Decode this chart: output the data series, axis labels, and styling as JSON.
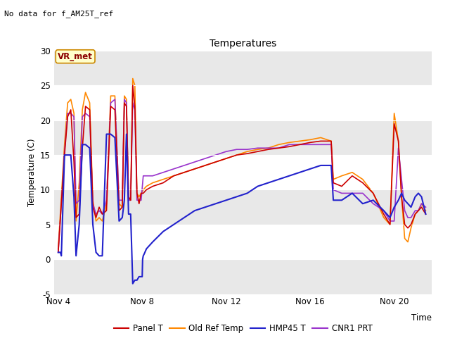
{
  "title": "Temperatures",
  "ylabel": "Temperature (C)",
  "xlabel": "Time",
  "top_left_text": "No data for f_AM25T_ref",
  "vr_met_label": "VR_met",
  "ylim": [
    -5,
    30
  ],
  "yticks": [
    -5,
    0,
    5,
    10,
    15,
    20,
    25,
    30
  ],
  "fig_bg_color": "#ffffff",
  "plot_bg_color": "#e8e8e8",
  "legend_entries": [
    "Panel T",
    "Old Ref Temp",
    "HMP45 T",
    "CNR1 PRT"
  ],
  "legend_colors": [
    "#cc0000",
    "#ff8800",
    "#2222cc",
    "#9933cc"
  ],
  "legend_linestyles": [
    "-",
    "-",
    "-",
    "-"
  ],
  "x_tick_labels": [
    "Nov 4",
    "Nov 8",
    "Nov 12",
    "Nov 16",
    "Nov 20"
  ],
  "x_tick_positions": [
    4,
    8,
    12,
    16,
    20
  ],
  "series": {
    "panel_t": {
      "x": [
        4.0,
        4.15,
        4.3,
        4.45,
        4.6,
        4.75,
        4.85,
        5.0,
        5.15,
        5.3,
        5.5,
        5.65,
        5.8,
        5.95,
        6.1,
        6.3,
        6.5,
        6.7,
        6.9,
        7.05,
        7.15,
        7.25,
        7.35,
        7.45,
        7.55,
        7.65,
        7.75,
        7.85,
        7.95,
        8.05,
        8.2,
        8.5,
        9.0,
        9.5,
        10.0,
        10.5,
        11.0,
        11.5,
        12.0,
        12.5,
        13.0,
        13.5,
        14.0,
        14.5,
        15.0,
        15.5,
        16.0,
        16.5,
        17.0,
        17.1,
        17.5,
        18.0,
        18.5,
        19.0,
        19.5,
        19.8,
        20.0,
        20.2,
        20.35,
        20.5,
        20.65,
        20.8,
        21.0,
        21.15,
        21.3,
        21.5
      ],
      "y": [
        1.0,
        8.0,
        15.0,
        20.5,
        21.5,
        14.0,
        6.0,
        6.5,
        16.0,
        22.0,
        21.5,
        7.5,
        6.0,
        7.5,
        6.5,
        7.0,
        22.0,
        21.5,
        7.0,
        7.5,
        22.5,
        22.0,
        9.0,
        8.5,
        25.0,
        22.0,
        9.5,
        8.0,
        9.5,
        9.5,
        10.0,
        10.5,
        11.0,
        12.0,
        12.5,
        13.0,
        13.5,
        14.0,
        14.5,
        15.0,
        15.2,
        15.5,
        15.8,
        16.0,
        16.2,
        16.5,
        16.8,
        17.0,
        17.0,
        11.0,
        10.5,
        12.0,
        11.0,
        9.5,
        6.5,
        5.0,
        19.5,
        17.0,
        9.0,
        5.0,
        4.5,
        5.0,
        6.5,
        7.0,
        7.5,
        6.5
      ],
      "color": "#cc0000",
      "linestyle": "-",
      "linewidth": 1.2,
      "zorder": 3
    },
    "old_ref_temp": {
      "x": [
        4.0,
        4.15,
        4.3,
        4.45,
        4.6,
        4.75,
        4.85,
        5.0,
        5.15,
        5.3,
        5.5,
        5.65,
        5.8,
        5.95,
        6.1,
        6.3,
        6.5,
        6.7,
        6.9,
        7.05,
        7.15,
        7.25,
        7.35,
        7.45,
        7.55,
        7.65,
        7.75,
        7.85,
        7.95,
        8.05,
        8.2,
        8.5,
        9.0,
        9.5,
        10.0,
        10.5,
        11.0,
        11.5,
        12.0,
        12.5,
        13.0,
        13.5,
        14.0,
        14.5,
        15.0,
        15.5,
        16.0,
        16.5,
        17.0,
        17.1,
        17.5,
        18.0,
        18.5,
        19.0,
        19.5,
        19.8,
        20.0,
        20.2,
        20.35,
        20.5,
        20.65,
        20.8,
        21.0,
        21.15,
        21.3,
        21.5
      ],
      "y": [
        1.5,
        9.0,
        16.5,
        22.5,
        23.0,
        21.0,
        5.5,
        11.0,
        21.5,
        24.0,
        22.5,
        8.5,
        5.5,
        6.0,
        5.5,
        8.0,
        23.5,
        23.5,
        8.0,
        7.5,
        23.5,
        23.0,
        8.5,
        8.5,
        26.0,
        25.0,
        9.5,
        9.0,
        9.5,
        10.0,
        10.5,
        11.0,
        11.5,
        12.0,
        12.5,
        13.0,
        13.5,
        14.0,
        14.5,
        15.0,
        15.5,
        15.8,
        16.0,
        16.5,
        16.8,
        17.0,
        17.2,
        17.5,
        17.0,
        11.5,
        12.0,
        12.5,
        11.5,
        9.5,
        6.0,
        5.0,
        21.0,
        17.0,
        9.0,
        3.0,
        2.5,
        4.5,
        6.5,
        7.0,
        8.0,
        7.0
      ],
      "color": "#ff8800",
      "linestyle": "-",
      "linewidth": 1.2,
      "zorder": 2
    },
    "hmp45_t": {
      "x": [
        4.0,
        4.1,
        4.15,
        4.3,
        4.45,
        4.6,
        4.75,
        4.85,
        5.0,
        5.15,
        5.3,
        5.5,
        5.65,
        5.8,
        5.95,
        6.1,
        6.3,
        6.5,
        6.7,
        6.9,
        7.05,
        7.15,
        7.25,
        7.35,
        7.45,
        7.55,
        7.65,
        7.75,
        7.85,
        7.95,
        8.0,
        8.02,
        8.05,
        8.1,
        8.2,
        8.5,
        9.0,
        9.5,
        10.0,
        10.5,
        11.0,
        11.5,
        12.0,
        12.5,
        13.0,
        13.5,
        14.0,
        14.5,
        15.0,
        15.5,
        16.0,
        16.5,
        17.0,
        17.1,
        17.5,
        18.0,
        18.5,
        19.0,
        19.5,
        19.8,
        20.0,
        20.2,
        20.35,
        20.5,
        20.65,
        20.8,
        21.0,
        21.15,
        21.3,
        21.5
      ],
      "y": [
        1.0,
        1.0,
        0.5,
        15.0,
        15.0,
        15.0,
        9.0,
        0.5,
        5.0,
        16.5,
        16.5,
        16.0,
        5.0,
        1.0,
        0.5,
        0.5,
        18.0,
        18.0,
        17.5,
        5.5,
        6.0,
        8.5,
        18.0,
        6.5,
        6.5,
        -3.5,
        -3.0,
        -3.0,
        -2.5,
        -2.5,
        -2.5,
        0.0,
        0.5,
        0.8,
        1.5,
        2.5,
        4.0,
        5.0,
        6.0,
        7.0,
        7.5,
        8.0,
        8.5,
        9.0,
        9.5,
        10.5,
        11.0,
        11.5,
        12.0,
        12.5,
        13.0,
        13.5,
        13.5,
        8.5,
        8.5,
        9.5,
        8.0,
        8.5,
        7.0,
        6.0,
        7.5,
        8.5,
        9.5,
        8.5,
        8.0,
        7.5,
        9.0,
        9.5,
        9.0,
        6.5
      ],
      "color": "#2222cc",
      "linestyle": "-",
      "linewidth": 1.5,
      "zorder": 4
    },
    "cnr1_prt": {
      "x": [
        4.0,
        4.15,
        4.3,
        4.45,
        4.6,
        4.75,
        4.85,
        5.0,
        5.15,
        5.3,
        5.5,
        5.65,
        5.8,
        5.95,
        6.1,
        6.3,
        6.5,
        6.7,
        6.9,
        7.05,
        7.15,
        7.25,
        7.35,
        7.45,
        7.55,
        7.65,
        7.75,
        7.85,
        7.95,
        8.05,
        8.2,
        8.5,
        9.0,
        9.5,
        10.0,
        10.5,
        11.0,
        11.5,
        12.0,
        12.5,
        13.0,
        13.5,
        14.0,
        14.5,
        15.0,
        15.5,
        16.0,
        16.5,
        17.0,
        17.1,
        17.5,
        18.0,
        18.5,
        19.0,
        19.5,
        19.8,
        20.0,
        20.2,
        20.35,
        20.5,
        20.65,
        20.8,
        21.0,
        21.15,
        21.3,
        21.5
      ],
      "y": [
        1.0,
        8.0,
        15.5,
        21.0,
        21.0,
        20.5,
        8.0,
        8.5,
        20.5,
        21.0,
        20.5,
        8.0,
        6.5,
        7.0,
        6.5,
        8.5,
        22.5,
        23.0,
        8.5,
        8.5,
        23.0,
        22.5,
        8.5,
        8.5,
        22.5,
        21.5,
        8.5,
        8.5,
        8.5,
        12.0,
        12.0,
        12.0,
        12.5,
        13.0,
        13.5,
        14.0,
        14.5,
        15.0,
        15.5,
        15.8,
        15.8,
        16.0,
        16.0,
        16.0,
        16.5,
        16.5,
        16.5,
        16.5,
        16.5,
        10.0,
        9.5,
        9.5,
        9.5,
        8.0,
        7.0,
        5.5,
        5.5,
        16.0,
        11.5,
        7.0,
        6.0,
        6.0,
        7.0,
        7.0,
        8.0,
        7.5
      ],
      "color": "#9933cc",
      "linestyle": "-",
      "linewidth": 1.2,
      "zorder": 2
    }
  }
}
